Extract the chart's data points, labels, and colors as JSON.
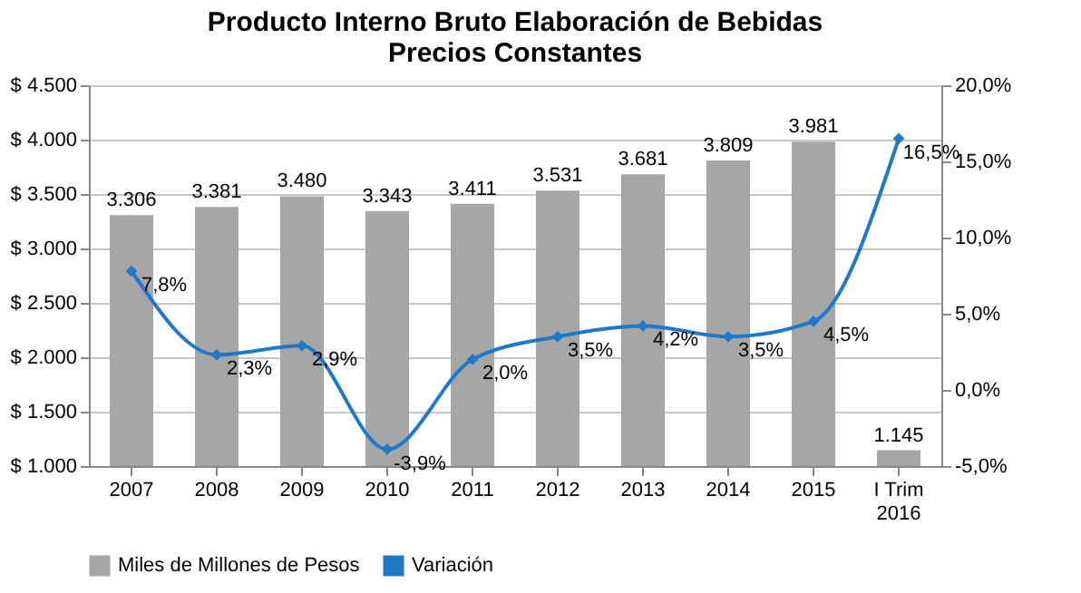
{
  "chart_data": {
    "type": "bar",
    "title": "Producto Interno Bruto Elaboración de Bebidas\nPrecios Constantes",
    "categories": [
      "2007",
      "2008",
      "2009",
      "2010",
      "2011",
      "2012",
      "2013",
      "2014",
      "2015",
      "I Trim 2016"
    ],
    "series": [
      {
        "name": "Miles de Millones de Pesos",
        "color": "#a6a6a6",
        "values": [
          3306,
          3381,
          3480,
          3343,
          3411,
          3531,
          3681,
          3809,
          3981,
          1145
        ],
        "value_labels": [
          "3.306",
          "3.381",
          "3.480",
          "3.343",
          "3.411",
          "3.531",
          "3.681",
          "3.809",
          "3.981",
          "1.145"
        ]
      },
      {
        "name": "Variación",
        "type": "line",
        "axis": "y2",
        "color": "#1f78c8",
        "values": [
          7.8,
          2.3,
          2.9,
          -3.9,
          2.0,
          3.5,
          4.2,
          3.5,
          4.5,
          16.5
        ],
        "value_labels": [
          "7,8%",
          "2,3%",
          "2,9%",
          "-3,9%",
          "2,0%",
          "3,5%",
          "4,2%",
          "3,5%",
          "4,5%",
          "16,5%"
        ]
      }
    ],
    "ylim": [
      1000,
      4500
    ],
    "yticks": [
      {
        "value": 1000,
        "label": "$ 1.000"
      },
      {
        "value": 1500,
        "label": "$ 1.500"
      },
      {
        "value": 2000,
        "label": "$ 2.000"
      },
      {
        "value": 2500,
        "label": "$ 2.500"
      },
      {
        "value": 3000,
        "label": "$ 3.000"
      },
      {
        "value": 3500,
        "label": "$ 3.500"
      },
      {
        "value": 4000,
        "label": "$ 4.000"
      },
      {
        "value": 4500,
        "label": "$ 4.500"
      }
    ],
    "y2lim": [
      -5,
      20
    ],
    "y2ticks": [
      {
        "value": -5,
        "label": "-5,0%"
      },
      {
        "value": 0,
        "label": "0,0%"
      },
      {
        "value": 5,
        "label": "5,0%"
      },
      {
        "value": 10,
        "label": "10,0%"
      },
      {
        "value": 15,
        "label": "15,0%"
      },
      {
        "value": 20,
        "label": "20,0%"
      }
    ],
    "grid": "y",
    "legend": "bottom",
    "marker": "diamond",
    "line_style": "solid"
  }
}
